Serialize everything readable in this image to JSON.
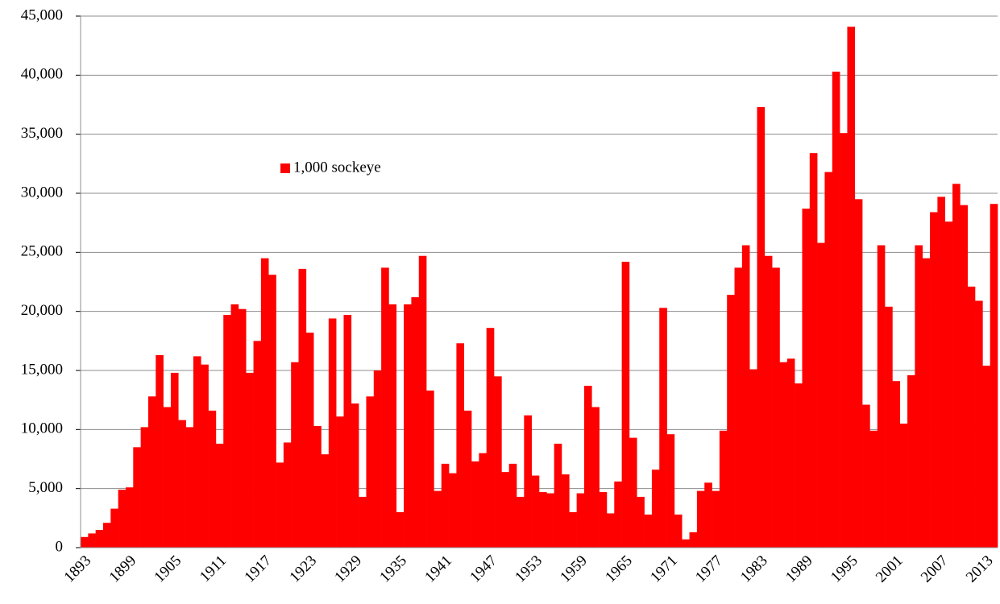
{
  "chart_data": {
    "type": "bar",
    "categories": [
      "1893",
      null,
      null,
      null,
      null,
      null,
      "1899",
      null,
      null,
      null,
      null,
      null,
      "1905",
      null,
      null,
      null,
      null,
      null,
      "1911",
      null,
      null,
      null,
      null,
      null,
      "1917",
      null,
      null,
      null,
      null,
      null,
      "1923",
      null,
      null,
      null,
      null,
      null,
      "1929",
      null,
      null,
      null,
      null,
      null,
      "1935",
      null,
      null,
      null,
      null,
      null,
      "1941",
      null,
      null,
      null,
      null,
      null,
      "1947",
      null,
      null,
      null,
      null,
      null,
      "1953",
      null,
      null,
      null,
      null,
      null,
      "1959",
      null,
      null,
      null,
      null,
      null,
      "1965",
      null,
      null,
      null,
      null,
      null,
      "1971",
      null,
      null,
      null,
      null,
      null,
      "1977",
      null,
      null,
      null,
      null,
      null,
      "1983",
      null,
      null,
      null,
      null,
      null,
      "1989",
      null,
      null,
      null,
      null,
      null,
      "1995",
      null,
      null,
      null,
      null,
      null,
      "2001",
      null,
      null,
      null,
      null,
      null,
      "2007",
      null,
      null,
      null,
      null,
      null,
      "2013",
      null
    ],
    "series": [
      {
        "name": "1,000 sockeye",
        "color": "#ff0000",
        "values": [
          900,
          1200,
          1500,
          2100,
          3300,
          4900,
          5100,
          8500,
          10200,
          12800,
          16300,
          11900,
          14800,
          10800,
          10200,
          16200,
          15500,
          11600,
          8800,
          19700,
          20600,
          20200,
          14800,
          17500,
          24500,
          23100,
          7200,
          8900,
          15700,
          23600,
          18200,
          10300,
          7900,
          19400,
          11100,
          19700,
          12200,
          4300,
          12800,
          15000,
          23700,
          20600,
          3000,
          20600,
          21200,
          24700,
          13300,
          4800,
          7100,
          6300,
          17300,
          11600,
          7300,
          8000,
          18600,
          14500,
          6400,
          7100,
          4300,
          11200,
          6100,
          4700,
          4600,
          8800,
          6200,
          3000,
          4600,
          13700,
          11900,
          4700,
          2900,
          5600,
          24200,
          9300,
          4300,
          2800,
          6600,
          20300,
          9600,
          2800,
          700,
          1300,
          4800,
          5500,
          4800,
          9900,
          21400,
          23700,
          25600,
          15100,
          37300,
          24700,
          23700,
          15700,
          16000,
          13900,
          28700,
          33400,
          25800,
          31800,
          40300,
          35100,
          44100,
          29500,
          12100,
          9900,
          25600,
          20400,
          14100,
          10500,
          14600,
          25600,
          24500,
          28400,
          29700,
          27600,
          30800,
          29000,
          22100,
          20900,
          15400,
          29100
        ]
      }
    ],
    "ylim": [
      0,
      45000
    ],
    "yticks": [
      0,
      {
        "value": 5000,
        "label": "5,000"
      },
      {
        "value": 10000,
        "label": "10,000"
      },
      {
        "value": 15000,
        "label": "15,000"
      },
      {
        "value": 20000,
        "label": "20,000"
      },
      {
        "value": 25000,
        "label": "25,000"
      },
      {
        "value": 30000,
        "label": "30,000"
      },
      {
        "value": 35000,
        "label": "35,000"
      },
      {
        "value": 40000,
        "label": "40,000"
      },
      {
        "value": 45000,
        "label": "45,000"
      }
    ],
    "grid": true
  }
}
